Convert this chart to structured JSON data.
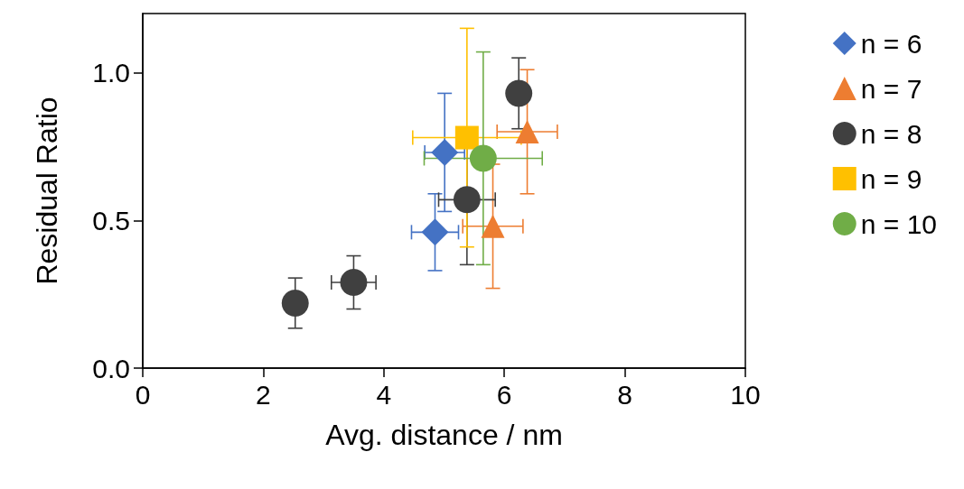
{
  "chart_data": {
    "type": "scatter",
    "xlabel": "Avg. distance / nm",
    "ylabel": "Residual Ratio",
    "xlim": [
      0,
      10
    ],
    "xticks": [
      0,
      2,
      4,
      6,
      8,
      10
    ],
    "ylim": [
      0,
      1.2
    ],
    "yticks": [
      {
        "value": 0,
        "label": "0.0"
      },
      {
        "value": 0.5,
        "label": "0.5"
      },
      {
        "value": 1,
        "label": "1.0"
      }
    ],
    "grid": false,
    "legend": "right",
    "series": [
      {
        "name": "n = 6",
        "color": "#4472c4",
        "marker": "diamond",
        "x": [
          5.01,
          4.85
        ],
        "values": [
          0.73,
          0.46
        ],
        "errors": [
          0.2,
          0.13
        ],
        "xerrors": [
          0.33,
          0.39
        ]
      },
      {
        "name": "n = 7",
        "color": "#ed7d31",
        "marker": "triangle",
        "x": [
          6.38,
          5.81
        ],
        "values": [
          0.8,
          0.48
        ],
        "errors": [
          0.21,
          0.21
        ],
        "xerrors": [
          0.5,
          0.5
        ]
      },
      {
        "name": "n = 8",
        "color": "#404040",
        "marker": "circle",
        "x": [
          2.53,
          3.5,
          5.38,
          6.24
        ],
        "values": [
          0.22,
          0.29,
          0.57,
          0.93
        ],
        "errors": [
          0.085,
          0.09,
          0.22,
          0.12
        ],
        "xerrors": [
          null,
          0.37,
          0.47,
          null
        ]
      },
      {
        "name": "n = 9",
        "color": "#ffc000",
        "marker": "square",
        "x": [
          5.38
        ],
        "values": [
          0.78
        ],
        "errors": [
          0.37
        ],
        "xerrors": [
          0.9
        ]
      },
      {
        "name": "n = 10",
        "color": "#70ad47",
        "marker": "circle",
        "x": [
          5.65
        ],
        "values": [
          0.71
        ],
        "errors": [
          0.36
        ],
        "xerrors": [
          0.98
        ]
      }
    ]
  }
}
